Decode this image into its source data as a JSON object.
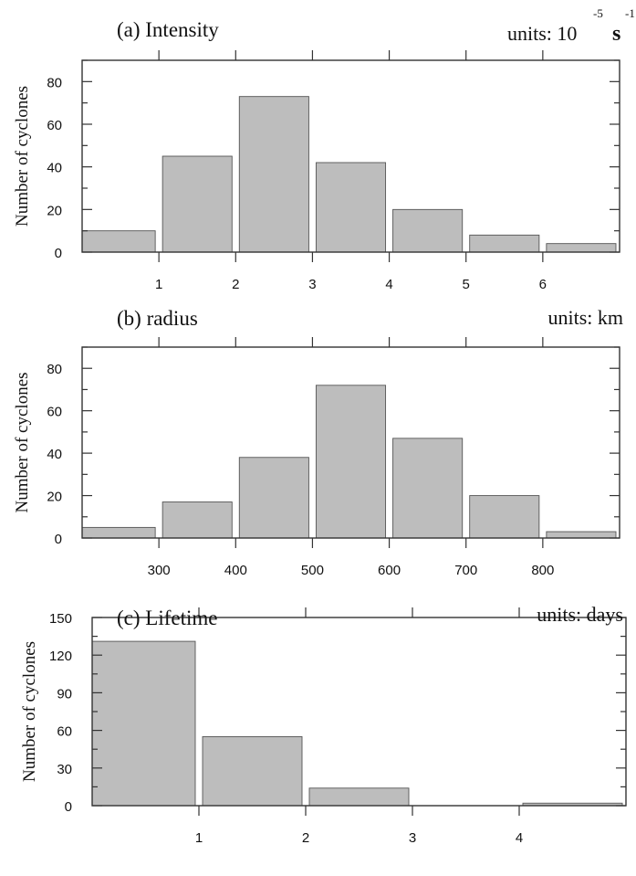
{
  "chart_data": [
    {
      "type": "bar",
      "title": "(a) Intensity",
      "units": {
        "prefix": "units: 10",
        "sup1": "-5",
        "unit": "s",
        "sup2": "-1"
      },
      "ylabel": "Number of cyclones",
      "ylim": [
        0,
        90
      ],
      "yticks": [
        0,
        20,
        40,
        60,
        80
      ],
      "xlim": [
        0,
        7
      ],
      "xticks": [
        1,
        2,
        3,
        4,
        5,
        6
      ],
      "bin_edges": [
        0,
        1,
        2,
        3,
        4,
        5,
        6,
        7
      ],
      "values": [
        10,
        45,
        73,
        42,
        20,
        8,
        4
      ]
    },
    {
      "type": "bar",
      "title": "(b) radius",
      "units": {
        "prefix": "units: km"
      },
      "ylabel": "Number of cyclones",
      "ylim": [
        0,
        90
      ],
      "yticks": [
        0,
        20,
        40,
        60,
        80
      ],
      "xlim": [
        200,
        900
      ],
      "xticks": [
        300,
        400,
        500,
        600,
        700,
        800
      ],
      "bin_edges": [
        200,
        300,
        400,
        500,
        600,
        700,
        800,
        900
      ],
      "values": [
        5,
        17,
        38,
        72,
        47,
        20,
        3
      ]
    },
    {
      "type": "bar",
      "title": "(c) Lifetime",
      "units": {
        "prefix": "units: days"
      },
      "ylabel": "Number of cyclones",
      "ylim": [
        0,
        150
      ],
      "yticks": [
        0,
        30,
        60,
        90,
        120,
        150
      ],
      "xlim": [
        0,
        5
      ],
      "xticks": [
        1,
        2,
        3,
        4
      ],
      "bin_edges": [
        0,
        1,
        2,
        3,
        4,
        5
      ],
      "values": [
        131,
        55,
        14,
        0,
        2
      ]
    }
  ]
}
